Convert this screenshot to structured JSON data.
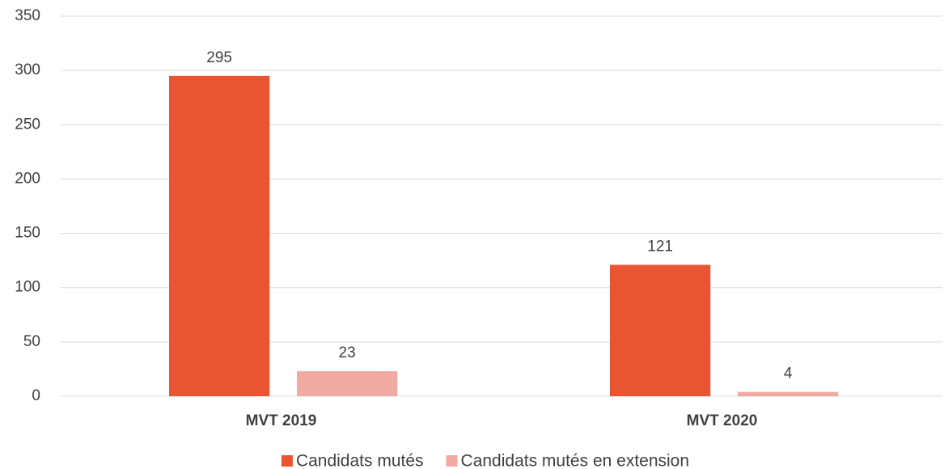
{
  "chart_data": {
    "type": "bar",
    "categories": [
      "MVT 2019",
      "MVT 2020"
    ],
    "series": [
      {
        "name": "Candidats mutés",
        "color": "#e95532",
        "values": [
          295,
          121
        ]
      },
      {
        "name": "Candidats mutés en extension",
        "color": "#f1aaa3",
        "values": [
          23,
          4
        ]
      }
    ],
    "ylim": [
      0,
      350
    ],
    "yticks": [
      0,
      50,
      100,
      150,
      200,
      250,
      300,
      350
    ],
    "grid": true,
    "legend": "bottom",
    "data_labels": true
  }
}
